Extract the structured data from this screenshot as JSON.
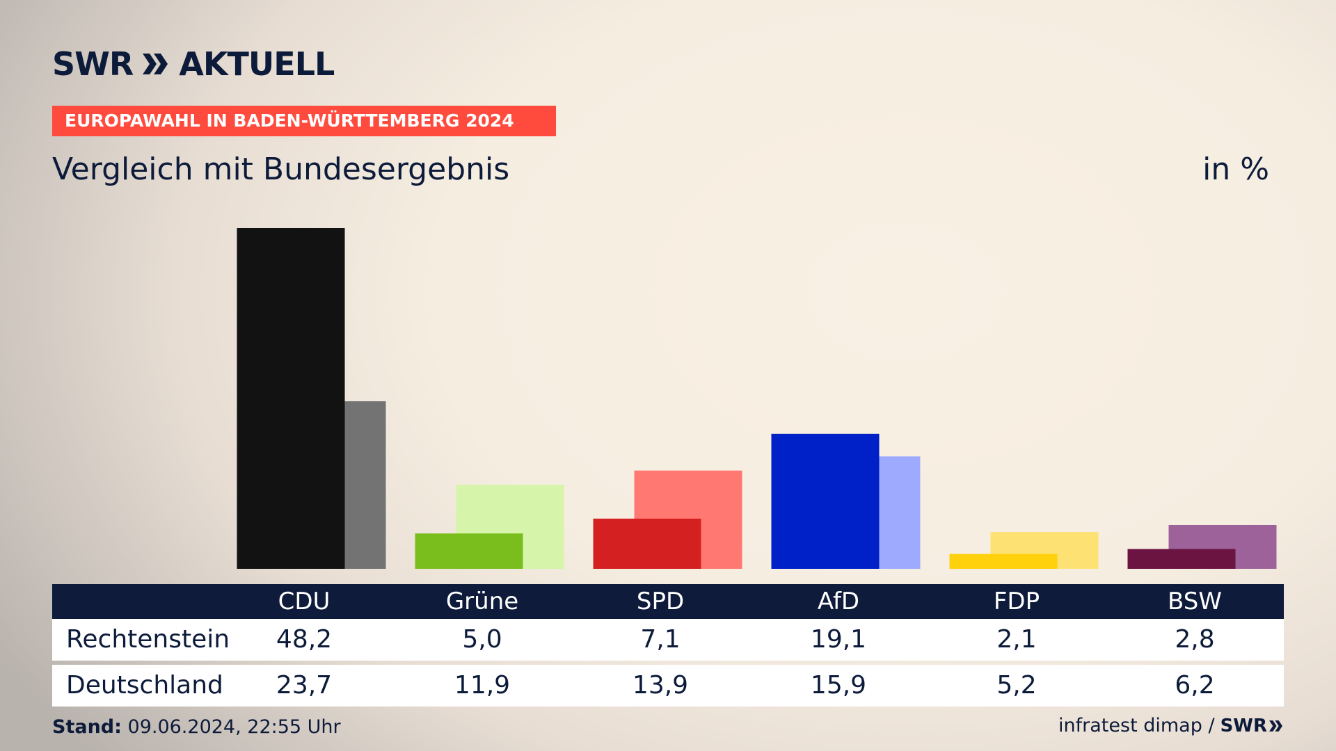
{
  "header": {
    "logo_left": "SWR",
    "logo_right": "AKTUELL",
    "kicker": "EUROPAWAHL IN BADEN-WÜRTTEMBERG 2024",
    "title": "Vergleich mit Bundesergebnis",
    "unit": "in %"
  },
  "table": {
    "rows": [
      "Rechtenstein",
      "Deutschland"
    ]
  },
  "footer": {
    "stand_label": "Stand:",
    "stand_value": "09.06.2024, 22:55 Uhr",
    "source": "infratest dimap /",
    "source_logo": "SWR"
  },
  "chart_data": {
    "type": "bar",
    "categories": [
      "CDU",
      "Grüne",
      "SPD",
      "AfD",
      "FDP",
      "BSW"
    ],
    "series": [
      {
        "name": "Rechtenstein",
        "values": [
          48.2,
          5.0,
          7.1,
          19.1,
          2.1,
          2.8
        ],
        "colors": [
          "#121212",
          "#79be1c",
          "#d42020",
          "#0020c8",
          "#ffd00c",
          "#6b1442"
        ]
      },
      {
        "name": "Deutschland",
        "values": [
          23.7,
          11.9,
          13.9,
          15.9,
          5.2,
          6.2
        ],
        "colors": [
          "#737373",
          "#d6f5aa",
          "#ff7872",
          "#9eaafd",
          "#fde273",
          "#9d6299"
        ]
      }
    ],
    "ylim": [
      0,
      48.2
    ],
    "grid": false,
    "legend": "table-below"
  }
}
